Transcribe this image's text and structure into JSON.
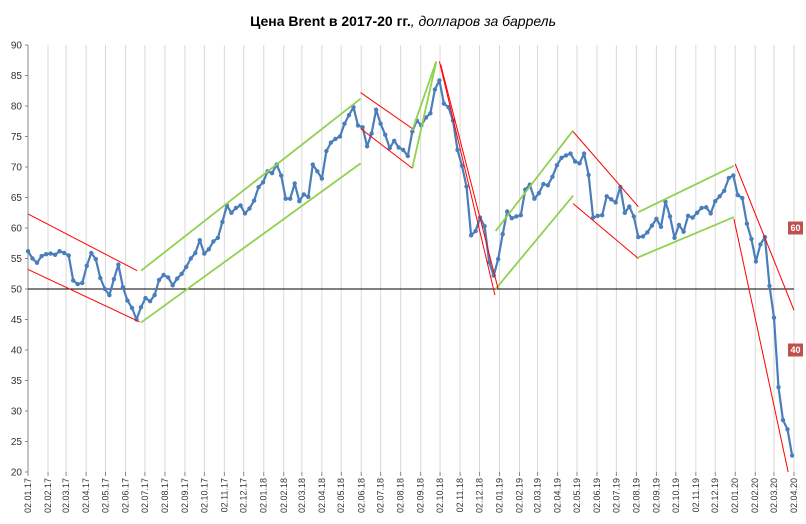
{
  "chart_data": {
    "type": "line",
    "title_bold": "Цена Brent в 2017-20 гг.",
    "title_rest": ", долларов за баррель",
    "xlabel": "",
    "ylabel": "",
    "ylim": [
      20,
      90
    ],
    "yticks": [
      20,
      25,
      30,
      35,
      40,
      45,
      50,
      55,
      60,
      65,
      70,
      75,
      80,
      85,
      90
    ],
    "xlim": [
      "2017-01-02",
      "2020-04-02"
    ],
    "xticks": [
      "02.01.17",
      "02.02.17",
      "02.03.17",
      "02.04.17",
      "02.05.17",
      "02.06.17",
      "02.07.17",
      "02.08.17",
      "02.09.17",
      "02.10.17",
      "02.11.17",
      "02.12.17",
      "02.01.18",
      "02.02.18",
      "02.03.18",
      "02.04.18",
      "02.05.18",
      "02.06.18",
      "02.07.18",
      "02.08.18",
      "02.09.18",
      "02.10.18",
      "02.11.18",
      "02.12.18",
      "02.01.19",
      "02.02.19",
      "02.03.19",
      "02.04.19",
      "02.05.19",
      "02.06.19",
      "02.07.19",
      "02.08.19",
      "02.09.19",
      "02.10.19",
      "02.11.19",
      "02.12.19",
      "02.01.20",
      "02.02.20",
      "02.03.20",
      "02.04.20"
    ],
    "grid": {
      "vertical": true,
      "horizontal": false
    },
    "reference_line": {
      "y": 50,
      "color": "#000000"
    },
    "series": [
      {
        "color": "#4a7ebb",
        "points": [
          [
            "2017-01-02",
            56.2
          ],
          [
            "2017-01-09",
            55.0
          ],
          [
            "2017-01-16",
            54.3
          ],
          [
            "2017-01-23",
            55.4
          ],
          [
            "2017-01-30",
            55.7
          ],
          [
            "2017-02-06",
            55.8
          ],
          [
            "2017-02-13",
            55.6
          ],
          [
            "2017-02-20",
            56.2
          ],
          [
            "2017-02-27",
            55.9
          ],
          [
            "2017-03-06",
            55.5
          ],
          [
            "2017-03-13",
            51.4
          ],
          [
            "2017-03-20",
            50.8
          ],
          [
            "2017-03-27",
            51.0
          ],
          [
            "2017-04-03",
            53.8
          ],
          [
            "2017-04-10",
            55.9
          ],
          [
            "2017-04-17",
            54.9
          ],
          [
            "2017-04-24",
            51.8
          ],
          [
            "2017-05-01",
            50.0
          ],
          [
            "2017-05-08",
            49.0
          ],
          [
            "2017-05-15",
            51.6
          ],
          [
            "2017-05-22",
            54.0
          ],
          [
            "2017-05-29",
            50.3
          ],
          [
            "2017-06-05",
            48.1
          ],
          [
            "2017-06-12",
            46.9
          ],
          [
            "2017-06-19",
            45.0
          ],
          [
            "2017-06-26",
            47.0
          ],
          [
            "2017-07-03",
            48.5
          ],
          [
            "2017-07-10",
            48.0
          ],
          [
            "2017-07-17",
            49.0
          ],
          [
            "2017-07-24",
            51.5
          ],
          [
            "2017-07-31",
            52.3
          ],
          [
            "2017-08-07",
            51.9
          ],
          [
            "2017-08-14",
            50.6
          ],
          [
            "2017-08-21",
            51.7
          ],
          [
            "2017-08-28",
            52.5
          ],
          [
            "2017-09-04",
            53.6
          ],
          [
            "2017-09-11",
            55.0
          ],
          [
            "2017-09-18",
            55.9
          ],
          [
            "2017-09-25",
            58.0
          ],
          [
            "2017-10-02",
            55.8
          ],
          [
            "2017-10-09",
            56.5
          ],
          [
            "2017-10-16",
            57.8
          ],
          [
            "2017-10-23",
            58.4
          ],
          [
            "2017-10-30",
            61.0
          ],
          [
            "2017-11-06",
            63.7
          ],
          [
            "2017-11-13",
            62.5
          ],
          [
            "2017-11-20",
            63.3
          ],
          [
            "2017-11-27",
            63.7
          ],
          [
            "2017-12-04",
            62.4
          ],
          [
            "2017-12-11",
            63.2
          ],
          [
            "2017-12-18",
            64.5
          ],
          [
            "2017-12-25",
            66.7
          ],
          [
            "2018-01-01",
            67.5
          ],
          [
            "2018-01-08",
            69.3
          ],
          [
            "2018-01-15",
            69.0
          ],
          [
            "2018-01-22",
            70.4
          ],
          [
            "2018-01-29",
            68.6
          ],
          [
            "2018-02-05",
            64.8
          ],
          [
            "2018-02-12",
            64.8
          ],
          [
            "2018-02-19",
            67.3
          ],
          [
            "2018-02-26",
            64.4
          ],
          [
            "2018-03-05",
            65.5
          ],
          [
            "2018-03-12",
            65.1
          ],
          [
            "2018-03-19",
            70.4
          ],
          [
            "2018-03-26",
            69.3
          ],
          [
            "2018-04-02",
            68.1
          ],
          [
            "2018-04-09",
            72.6
          ],
          [
            "2018-04-16",
            74.0
          ],
          [
            "2018-04-23",
            74.6
          ],
          [
            "2018-04-30",
            75.0
          ],
          [
            "2018-05-07",
            77.1
          ],
          [
            "2018-05-14",
            78.5
          ],
          [
            "2018-05-21",
            79.8
          ],
          [
            "2018-05-28",
            76.8
          ],
          [
            "2018-06-04",
            76.5
          ],
          [
            "2018-06-11",
            73.4
          ],
          [
            "2018-06-18",
            75.5
          ],
          [
            "2018-06-25",
            79.4
          ],
          [
            "2018-07-02",
            77.1
          ],
          [
            "2018-07-09",
            75.3
          ],
          [
            "2018-07-16",
            73.1
          ],
          [
            "2018-07-23",
            74.3
          ],
          [
            "2018-07-30",
            73.2
          ],
          [
            "2018-08-06",
            72.8
          ],
          [
            "2018-08-13",
            71.8
          ],
          [
            "2018-08-20",
            75.8
          ],
          [
            "2018-08-27",
            77.6
          ],
          [
            "2018-09-03",
            76.8
          ],
          [
            "2018-09-10",
            78.1
          ],
          [
            "2018-09-17",
            78.8
          ],
          [
            "2018-09-24",
            82.7
          ],
          [
            "2018-10-01",
            84.2
          ],
          [
            "2018-10-08",
            80.4
          ],
          [
            "2018-10-15",
            79.8
          ],
          [
            "2018-10-22",
            77.6
          ],
          [
            "2018-10-29",
            72.8
          ],
          [
            "2018-11-05",
            70.2
          ],
          [
            "2018-11-12",
            66.8
          ],
          [
            "2018-11-19",
            58.8
          ],
          [
            "2018-11-26",
            59.5
          ],
          [
            "2018-12-03",
            61.7
          ],
          [
            "2018-12-10",
            60.3
          ],
          [
            "2018-12-17",
            54.4
          ],
          [
            "2018-12-24",
            52.2
          ],
          [
            "2018-12-31",
            54.9
          ],
          [
            "2019-01-07",
            59.0
          ],
          [
            "2019-01-14",
            62.7
          ],
          [
            "2019-01-21",
            61.6
          ],
          [
            "2019-01-28",
            61.9
          ],
          [
            "2019-02-04",
            62.1
          ],
          [
            "2019-02-11",
            66.3
          ],
          [
            "2019-02-18",
            67.1
          ],
          [
            "2019-02-25",
            64.8
          ],
          [
            "2019-03-04",
            65.7
          ],
          [
            "2019-03-11",
            67.2
          ],
          [
            "2019-03-18",
            67.0
          ],
          [
            "2019-03-25",
            68.4
          ],
          [
            "2019-04-01",
            70.3
          ],
          [
            "2019-04-08",
            71.5
          ],
          [
            "2019-04-15",
            71.9
          ],
          [
            "2019-04-22",
            72.2
          ],
          [
            "2019-04-29",
            70.9
          ],
          [
            "2019-05-06",
            70.6
          ],
          [
            "2019-05-13",
            72.2
          ],
          [
            "2019-05-20",
            68.7
          ],
          [
            "2019-05-27",
            61.7
          ],
          [
            "2019-06-03",
            62.0
          ],
          [
            "2019-06-10",
            62.1
          ],
          [
            "2019-06-17",
            65.2
          ],
          [
            "2019-06-24",
            64.7
          ],
          [
            "2019-07-01",
            64.2
          ],
          [
            "2019-07-08",
            66.7
          ],
          [
            "2019-07-15",
            62.5
          ],
          [
            "2019-07-22",
            63.5
          ],
          [
            "2019-07-29",
            61.9
          ],
          [
            "2019-08-05",
            58.5
          ],
          [
            "2019-08-12",
            58.6
          ],
          [
            "2019-08-19",
            59.3
          ],
          [
            "2019-08-26",
            60.4
          ],
          [
            "2019-09-02",
            61.5
          ],
          [
            "2019-09-09",
            60.2
          ],
          [
            "2019-09-16",
            64.3
          ],
          [
            "2019-09-23",
            61.9
          ],
          [
            "2019-09-30",
            58.4
          ],
          [
            "2019-10-07",
            60.5
          ],
          [
            "2019-10-14",
            59.4
          ],
          [
            "2019-10-21",
            62.0
          ],
          [
            "2019-10-28",
            61.7
          ],
          [
            "2019-11-04",
            62.5
          ],
          [
            "2019-11-11",
            63.3
          ],
          [
            "2019-11-18",
            63.4
          ],
          [
            "2019-11-25",
            62.4
          ],
          [
            "2019-12-02",
            64.4
          ],
          [
            "2019-12-09",
            65.2
          ],
          [
            "2019-12-16",
            66.1
          ],
          [
            "2019-12-23",
            68.2
          ],
          [
            "2019-12-30",
            68.6
          ],
          [
            "2020-01-06",
            65.4
          ],
          [
            "2020-01-13",
            64.9
          ],
          [
            "2020-01-20",
            60.7
          ],
          [
            "2020-01-27",
            58.2
          ],
          [
            "2020-02-03",
            54.5
          ],
          [
            "2020-02-10",
            57.3
          ],
          [
            "2020-02-17",
            58.5
          ],
          [
            "2020-02-24",
            50.5
          ],
          [
            "2020-03-02",
            45.3
          ],
          [
            "2020-03-09",
            33.9
          ],
          [
            "2020-03-16",
            28.5
          ],
          [
            "2020-03-23",
            27.0
          ],
          [
            "2020-03-30",
            22.7
          ]
        ]
      }
    ],
    "annotations": {
      "green_lines": [
        [
          [
            "2017-06-26",
            44.5
          ],
          [
            "2018-06-01",
            70.6
          ]
        ],
        [
          [
            "2017-06-26",
            53.0
          ],
          [
            "2018-06-01",
            81.2
          ]
        ],
        [
          [
            "2018-08-20",
            69.8
          ],
          [
            "2018-09-26",
            87.2
          ]
        ],
        [
          [
            "2018-08-20",
            76.0
          ],
          [
            "2018-09-26",
            87.3
          ]
        ],
        [
          [
            "2018-12-27",
            50.0
          ],
          [
            "2019-04-26",
            65.3
          ]
        ],
        [
          [
            "2018-12-27",
            59.5
          ],
          [
            "2019-04-26",
            76.0
          ]
        ],
        [
          [
            "2019-08-05",
            55.2
          ],
          [
            "2019-12-31",
            61.8
          ]
        ],
        [
          [
            "2019-08-05",
            62.6
          ],
          [
            "2019-12-31",
            70.2
          ]
        ]
      ],
      "red_lines": [
        [
          [
            "2017-01-02",
            62.3
          ],
          [
            "2017-06-20",
            53.0
          ]
        ],
        [
          [
            "2017-01-02",
            53.2
          ],
          [
            "2017-06-24",
            44.6
          ]
        ],
        [
          [
            "2018-06-01",
            82.2
          ],
          [
            "2018-08-20",
            76.3
          ]
        ],
        [
          [
            "2018-06-01",
            76.3
          ],
          [
            "2018-08-20",
            69.8
          ]
        ],
        [
          [
            "2018-10-03",
            86.8
          ],
          [
            "2018-12-31",
            50.0
          ]
        ],
        [
          [
            "2018-10-01",
            87.3
          ],
          [
            "2018-12-26",
            49.0
          ]
        ],
        [
          [
            "2019-04-26",
            75.8
          ],
          [
            "2019-08-05",
            63.5
          ]
        ],
        [
          [
            "2019-04-26",
            64.0
          ],
          [
            "2019-08-05",
            55.0
          ]
        ],
        [
          [
            "2019-12-31",
            61.5
          ],
          [
            "2020-03-24",
            20.0
          ]
        ],
        [
          [
            "2020-01-02",
            70.5
          ],
          [
            "2020-04-02",
            46.5
          ]
        ]
      ],
      "badges": [
        {
          "label": "60",
          "y": 60,
          "color": "#c0504d"
        },
        {
          "label": "40",
          "y": 40,
          "color": "#c0504d"
        }
      ],
      "green_color": "#92d050",
      "red_color": "#ff0000"
    }
  }
}
